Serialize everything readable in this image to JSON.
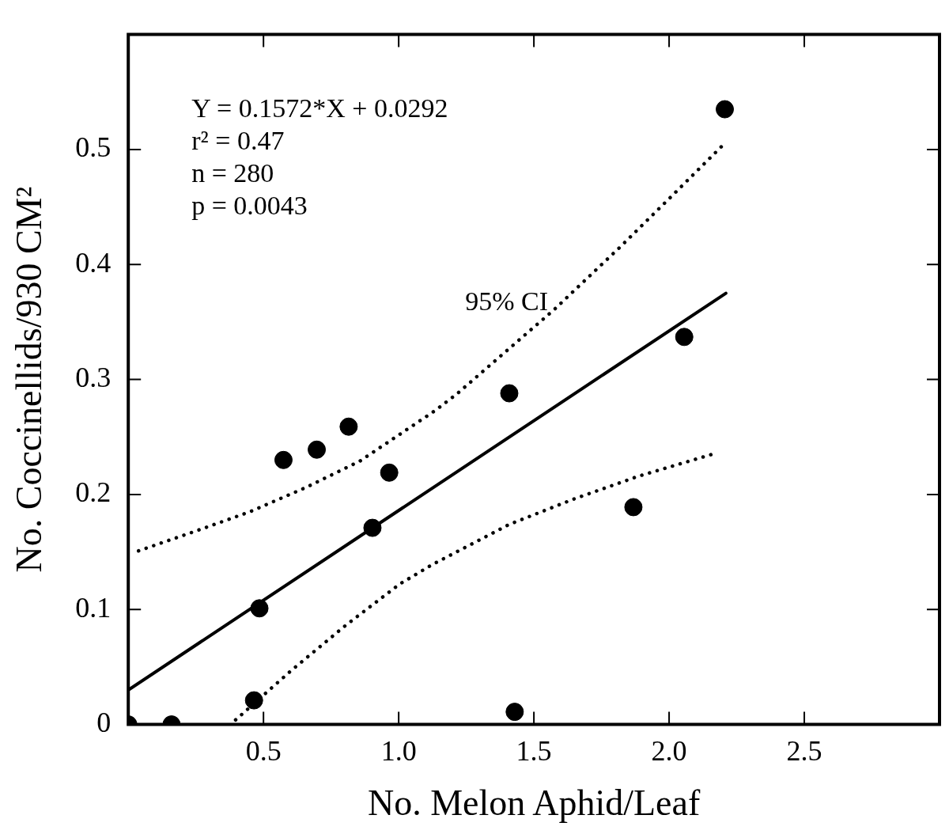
{
  "chart_data": {
    "type": "scatter",
    "xlabel": "No. Melon Aphid/Leaf",
    "ylabel": "No. Coccinellids/930 CM²",
    "xlim": [
      0,
      3
    ],
    "ylim": [
      0,
      0.6
    ],
    "xticks": [
      {
        "value": 0.5,
        "label": "0.5"
      },
      {
        "value": 1.0,
        "label": "1.0"
      },
      {
        "value": 1.5,
        "label": "1.5"
      },
      {
        "value": 2.0,
        "label": "2.0"
      },
      {
        "value": 2.5,
        "label": "2.5"
      }
    ],
    "yticks": [
      0,
      0.1,
      0.2,
      0.3,
      0.4,
      0.5,
      {
        "value": 0.6,
        "label": null
      }
    ],
    "legend": false,
    "series": [
      {
        "type": "scatter",
        "color": "#000000",
        "marker": "circle",
        "x": [
          0,
          0.16,
          0.465,
          0.485,
          0.574,
          0.697,
          0.815,
          0.903,
          0.965,
          1.409,
          1.429,
          1.868,
          2.056,
          2.206
        ],
        "values": [
          0,
          0,
          0.021,
          0.101,
          0.23,
          0.239,
          0.259,
          0.171,
          0.219,
          0.288,
          0.011,
          0.189,
          0.337,
          0.535
        ]
      },
      {
        "type": "line",
        "color": "#000000",
        "marker": "none",
        "line_style": "solid",
        "x": [
          0,
          2.21
        ],
        "values": [
          0.03,
          0.375
        ]
      },
      {
        "type": "line",
        "color": "#000000",
        "marker": "none",
        "line_style": "dotted",
        "x": [
          0.038,
          0.247,
          0.45,
          0.656,
          0.856,
          1.135,
          1.218,
          1.576,
          1.818,
          2.012,
          2.2
        ],
        "values": [
          0.151,
          0.168,
          0.185,
          0.206,
          0.229,
          0.273,
          0.288,
          0.361,
          0.415,
          0.46,
          0.504
        ]
      },
      {
        "type": "line",
        "color": "#000000",
        "marker": "none",
        "line_style": "dotted",
        "x": [
          0.397,
          0.603,
          0.803,
          1.003,
          1.124,
          1.409,
          1.647,
          1.888,
          2.174
        ],
        "values": [
          0.004,
          0.047,
          0.086,
          0.122,
          0.139,
          0.174,
          0.196,
          0.216,
          0.236
        ]
      }
    ],
    "annotations": [
      "Y = 0.1572*X + 0.0292",
      "r² = 0.47",
      "n = 280",
      "p = 0.0043",
      {
        "text": "95% CI",
        "x": 1.576,
        "y": 0.361
      }
    ]
  }
}
